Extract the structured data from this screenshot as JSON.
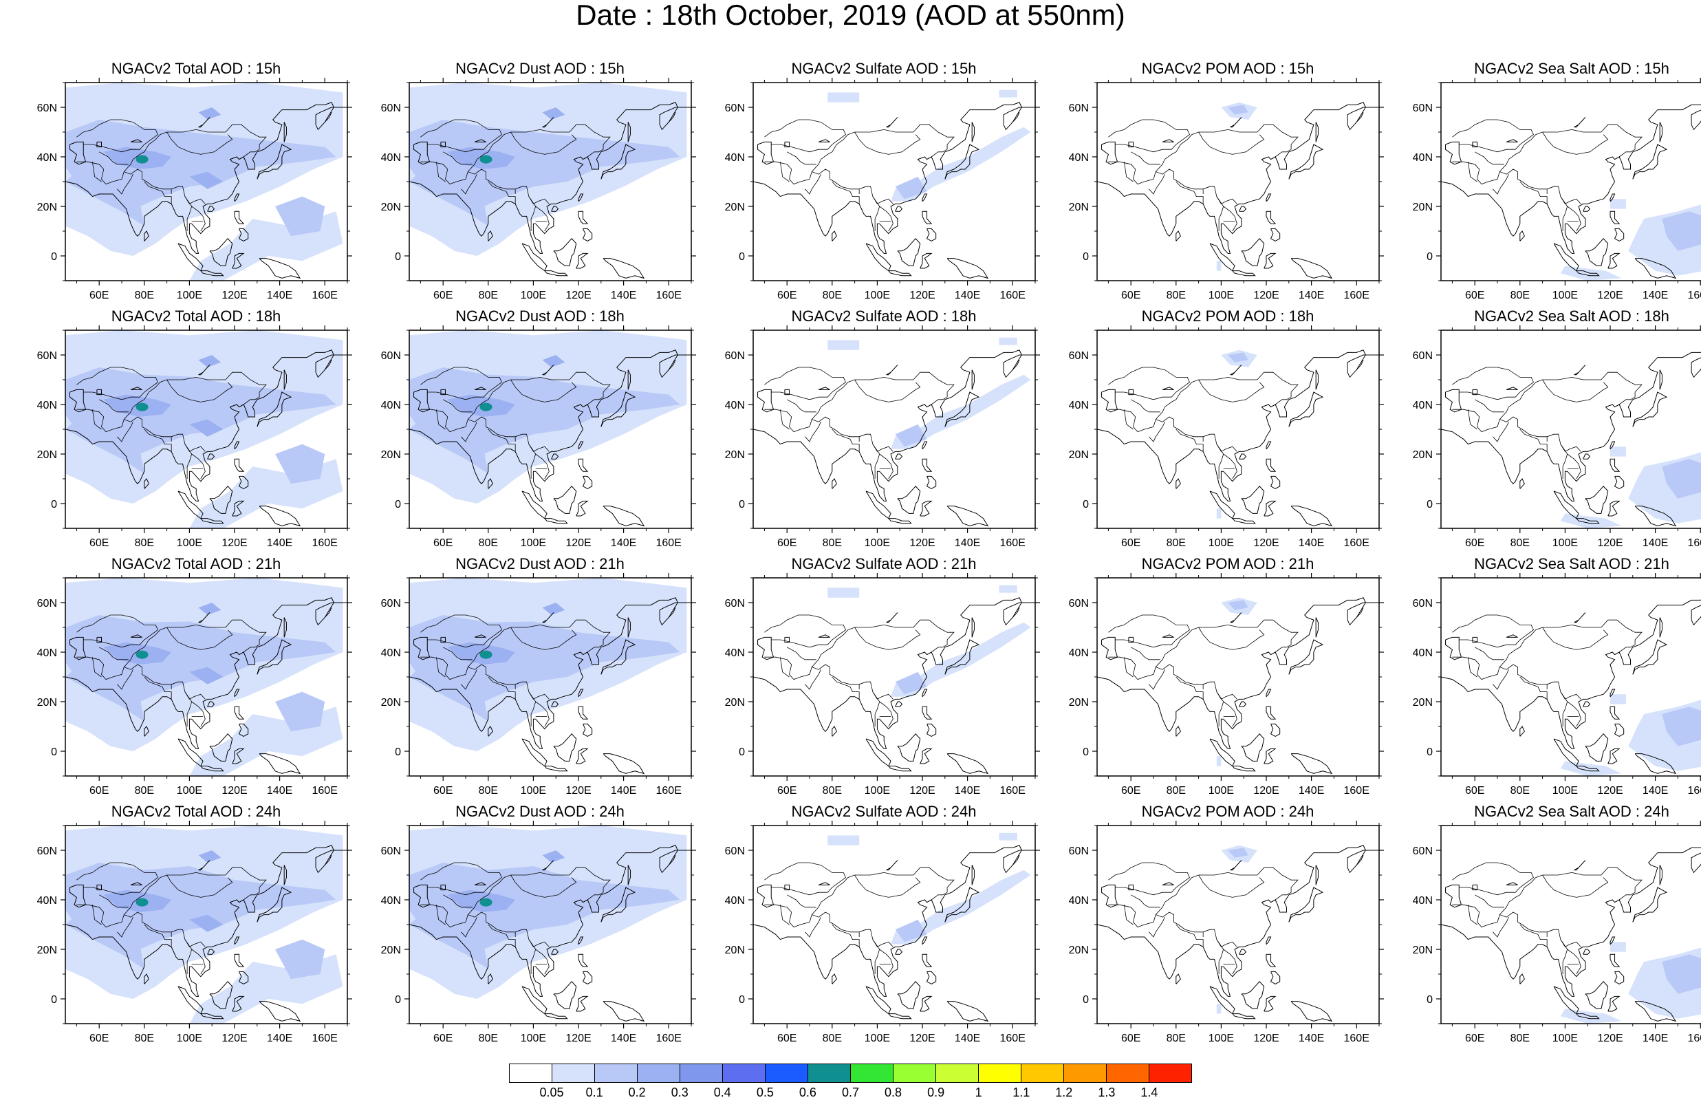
{
  "title": "Date : 18th October, 2019 (AOD at 550nm)",
  "rows": [
    {
      "hour": "15h",
      "panels": [
        {
          "key": "total",
          "title": "NGACv2 Total AOD : 15h"
        },
        {
          "key": "dust",
          "title": "NGACv2 Dust AOD : 15h"
        },
        {
          "key": "sulfate",
          "title": "NGACv2 Sulfate AOD : 15h"
        },
        {
          "key": "pom",
          "title": "NGACv2 POM AOD : 15h"
        },
        {
          "key": "seasalt",
          "title": "NGACv2 Sea Salt AOD : 15h"
        }
      ]
    },
    {
      "hour": "18h",
      "panels": [
        {
          "key": "total",
          "title": "NGACv2 Total AOD : 18h"
        },
        {
          "key": "dust",
          "title": "NGACv2 Dust AOD : 18h"
        },
        {
          "key": "sulfate",
          "title": "NGACv2 Sulfate AOD : 18h"
        },
        {
          "key": "pom",
          "title": "NGACv2 POM AOD : 18h"
        },
        {
          "key": "seasalt",
          "title": "NGACv2 Sea Salt AOD : 18h"
        }
      ]
    },
    {
      "hour": "21h",
      "panels": [
        {
          "key": "total",
          "title": "NGACv2 Total AOD : 21h"
        },
        {
          "key": "dust",
          "title": "NGACv2 Dust AOD : 21h"
        },
        {
          "key": "sulfate",
          "title": "NGACv2 Sulfate AOD : 21h"
        },
        {
          "key": "pom",
          "title": "NGACv2 POM AOD : 21h"
        },
        {
          "key": "seasalt",
          "title": "NGACv2 Sea Salt AOD : 21h"
        }
      ]
    },
    {
      "hour": "24h",
      "panels": [
        {
          "key": "total",
          "title": "NGACv2 Total AOD : 24h"
        },
        {
          "key": "dust",
          "title": "NGACv2 Dust AOD : 24h"
        },
        {
          "key": "sulfate",
          "title": "NGACv2 Sulfate AOD : 24h"
        },
        {
          "key": "pom",
          "title": "NGACv2 POM AOD : 24h"
        },
        {
          "key": "seasalt",
          "title": "NGACv2 Sea Salt  AOD : 24h"
        }
      ]
    }
  ],
  "map_axes": {
    "lon_ticks": [
      "60E",
      "80E",
      "100E",
      "120E",
      "140E",
      "160E"
    ],
    "lon_values": [
      60,
      80,
      100,
      120,
      140,
      160
    ],
    "lat_ticks": [
      "60N",
      "40N",
      "20N",
      "0"
    ],
    "lat_values": [
      60,
      40,
      20,
      0
    ],
    "lon_range": [
      45,
      170
    ],
    "lat_range": [
      -10,
      70
    ]
  },
  "colorbar": {
    "labels": [
      "0.05",
      "0.1",
      "0.2",
      "0.3",
      "0.4",
      "0.5",
      "0.6",
      "0.7",
      "0.8",
      "0.9",
      "1",
      "1.1",
      "1.2",
      "1.3",
      "1.4"
    ],
    "colors": [
      "#ffffff",
      "#d6e2fb",
      "#b9c9f7",
      "#9cb1f2",
      "#7f98ee",
      "#5d6ff0",
      "#1a5cff",
      "#0f8f8f",
      "#33e633",
      "#99ff33",
      "#ccff33",
      "#ffff00",
      "#ffc800",
      "#ff9900",
      "#ff6600",
      "#ff2200"
    ]
  },
  "fields": {
    "total": {
      "level_light": "#d6e2fb",
      "level_mid": "#b9c9f7",
      "level_dark": "#9cb1f2",
      "hotspot": "#0f8f8f",
      "coverage": "broad"
    },
    "dust": {
      "level_light": "#d6e2fb",
      "level_mid": "#b9c9f7",
      "level_dark": "#9cb1f2",
      "hotspot": "#0f8f8f",
      "coverage": "land"
    },
    "sulfate": {
      "level_light": "#d6e2fb",
      "level_mid": "#b9c9f7",
      "coverage": "east-china-plume"
    },
    "pom": {
      "level_light": "#d6e2fb",
      "level_mid": "#b9c9f7",
      "coverage": "siberia-spot"
    },
    "seasalt": {
      "level_light": "#d6e2fb",
      "level_mid": "#b9c9f7",
      "coverage": "ocean"
    }
  }
}
